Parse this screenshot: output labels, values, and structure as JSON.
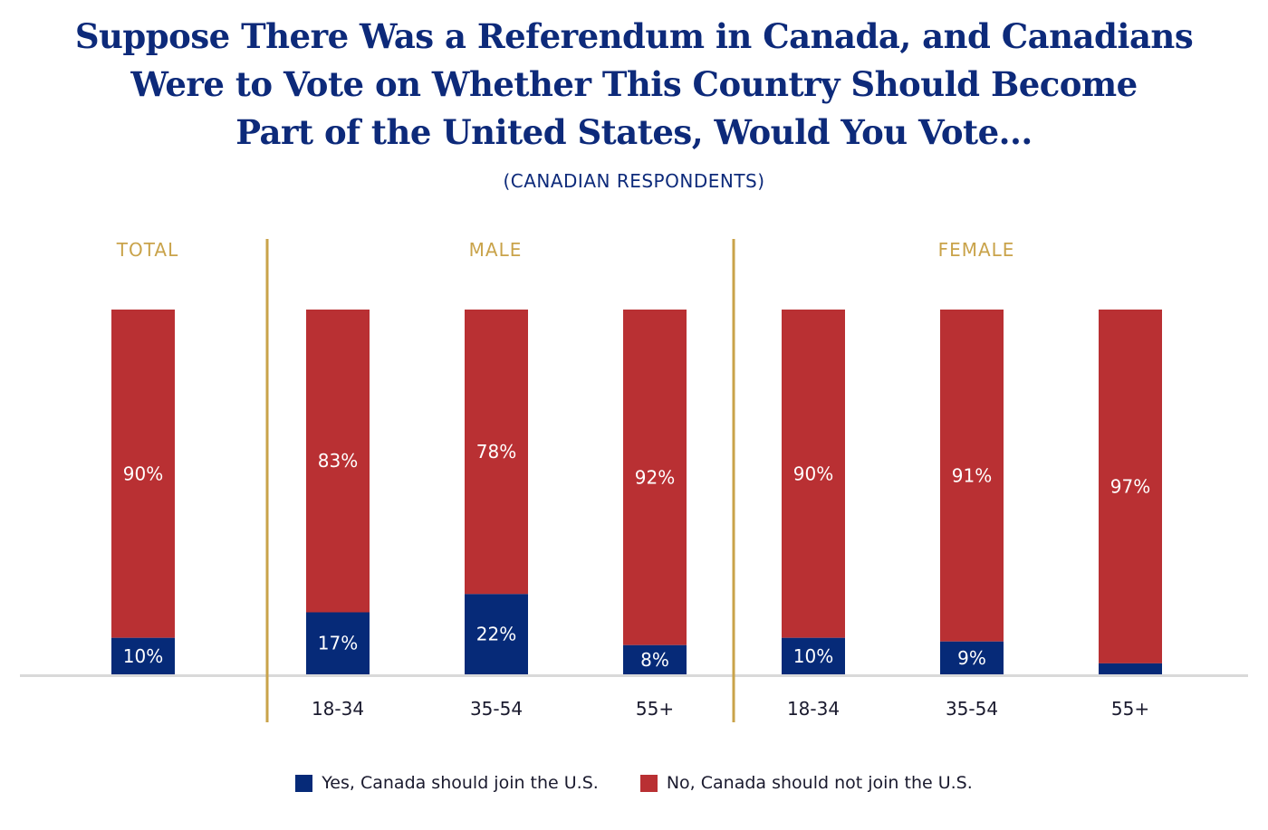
{
  "chart_data": {
    "type": "bar",
    "stacked": true,
    "title_lines": [
      "Suppose There Was a Referendum in Canada, and Canadians",
      "Were to Vote on Whether This Country Should Become",
      "Part of the United States, Would You Vote..."
    ],
    "subtitle": "(CANADIAN RESPONDENTS)",
    "groups": [
      {
        "label": "TOTAL",
        "categories": [
          ""
        ]
      },
      {
        "label": "MALE",
        "categories": [
          "18-34",
          "35-54",
          "55+"
        ]
      },
      {
        "label": "FEMALE",
        "categories": [
          "18-34",
          "35-54",
          "55+"
        ]
      }
    ],
    "series": [
      {
        "name": "Yes, Canada should join the U.S.",
        "color": "#062a78",
        "values": [
          10,
          17,
          22,
          8,
          10,
          9,
          3
        ],
        "labels": [
          "10%",
          "17%",
          "22%",
          "8%",
          "10%",
          "9%",
          null
        ]
      },
      {
        "name": "No, Canada should not join the U.S.",
        "color": "#b93033",
        "values": [
          90,
          83,
          78,
          92,
          90,
          91,
          97
        ],
        "labels": [
          "90%",
          "83%",
          "78%",
          "92%",
          "90%",
          "91%",
          "97%"
        ]
      }
    ],
    "ylim": [
      0,
      100
    ],
    "legend": "bottom-center",
    "grid": false,
    "accent_color": "#c9a34a"
  }
}
